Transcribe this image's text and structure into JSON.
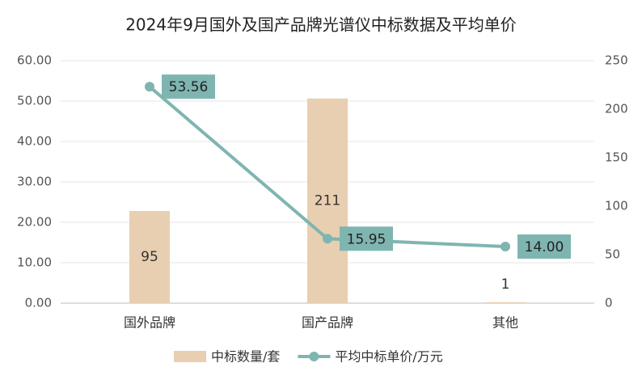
{
  "chart_data": {
    "type": "bar-line",
    "title": "2024年9月国外及国产品牌光谱仪中标数据及平均单价",
    "categories": [
      "国外品牌",
      "国产品牌",
      "其他"
    ],
    "series": [
      {
        "name": "中标数量/套",
        "type": "bar",
        "axis": "y2",
        "color": "#e8cfb1",
        "values": [
          95,
          211,
          1
        ]
      },
      {
        "name": "平均中标单价/万元",
        "type": "line",
        "axis": "y",
        "color": "#7fb5b0",
        "values": [
          53.56,
          15.95,
          14.0
        ],
        "value_labels": [
          "53.56",
          "15.95",
          "14.00"
        ]
      }
    ],
    "ylim": [
      0,
      60
    ],
    "yticks": [
      {
        "value": 0,
        "label": "0.00"
      },
      {
        "value": 10,
        "label": "10.00"
      },
      {
        "value": 20,
        "label": "20.00"
      },
      {
        "value": 30,
        "label": "30.00"
      },
      {
        "value": 40,
        "label": "40.00"
      },
      {
        "value": 50,
        "label": "50.00"
      },
      {
        "value": 60,
        "label": "60.00"
      }
    ],
    "y2lim": [
      0,
      250
    ],
    "y2ticks": [
      0,
      50,
      100,
      150,
      200,
      250
    ],
    "grid": true,
    "legend": "bottom"
  }
}
